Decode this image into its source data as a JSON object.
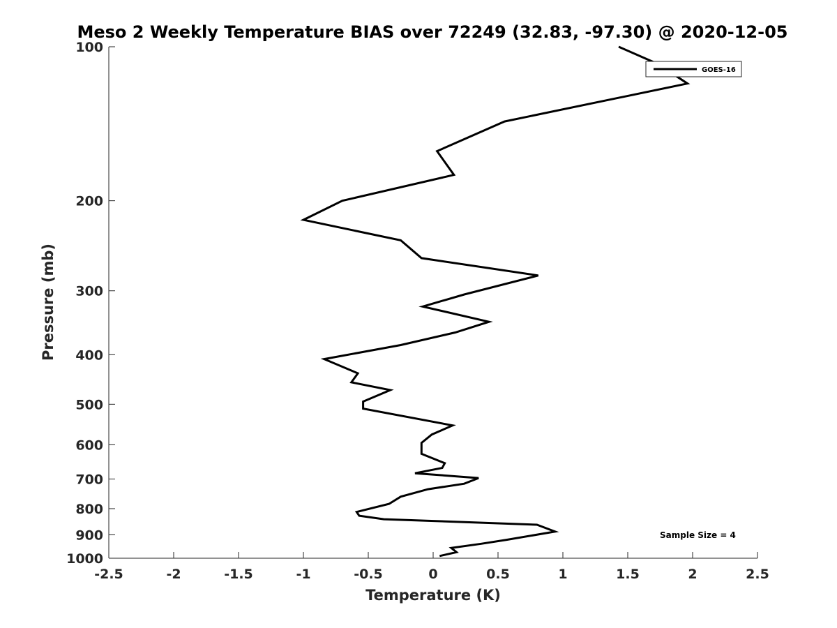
{
  "chart_data": {
    "type": "line",
    "title": "Meso 2 Weekly Temperature BIAS over 72249 (32.83, -97.30) @ 2020-12-05",
    "xlabel": "Temperature (K)",
    "ylabel": "Pressure (mb)",
    "xlim": [
      -2.5,
      2.5
    ],
    "ylim": [
      100,
      1000
    ],
    "yscale": "log",
    "y_reversed": true,
    "x_ticks": [
      "-2.5",
      "-2",
      "-1.5",
      "-1",
      "-0.5",
      "0",
      "0.5",
      "1",
      "1.5",
      "2",
      "2.5"
    ],
    "y_ticks": [
      "100",
      "200",
      "300",
      "400",
      "500",
      "600",
      "700",
      "800",
      "900",
      "1000"
    ],
    "grid": false,
    "legend_position": "top-right",
    "annotation": "Sample Size = 4",
    "series": [
      {
        "name": "GOES-16",
        "color": "#000000",
        "points": [
          {
            "x": 0.05,
            "p": 990
          },
          {
            "x": 0.18,
            "p": 973
          },
          {
            "x": 0.14,
            "p": 955
          },
          {
            "x": 0.37,
            "p": 937
          },
          {
            "x": 0.57,
            "p": 920
          },
          {
            "x": 0.94,
            "p": 887
          },
          {
            "x": 0.8,
            "p": 860
          },
          {
            "x": -0.38,
            "p": 839
          },
          {
            "x": -0.57,
            "p": 826
          },
          {
            "x": -0.59,
            "p": 812
          },
          {
            "x": -0.34,
            "p": 783
          },
          {
            "x": -0.25,
            "p": 758
          },
          {
            "x": -0.04,
            "p": 733
          },
          {
            "x": 0.24,
            "p": 715
          },
          {
            "x": 0.35,
            "p": 697
          },
          {
            "x": -0.14,
            "p": 682
          },
          {
            "x": 0.07,
            "p": 666
          },
          {
            "x": 0.09,
            "p": 652
          },
          {
            "x": -0.09,
            "p": 625
          },
          {
            "x": -0.09,
            "p": 609
          },
          {
            "x": -0.09,
            "p": 595
          },
          {
            "x": -0.01,
            "p": 573
          },
          {
            "x": 0.15,
            "p": 550
          },
          {
            "x": -0.54,
            "p": 510
          },
          {
            "x": -0.54,
            "p": 494
          },
          {
            "x": -0.33,
            "p": 469
          },
          {
            "x": -0.63,
            "p": 453
          },
          {
            "x": -0.58,
            "p": 435
          },
          {
            "x": -0.84,
            "p": 408
          },
          {
            "x": -0.25,
            "p": 383
          },
          {
            "x": 0.17,
            "p": 362
          },
          {
            "x": 0.43,
            "p": 345
          },
          {
            "x": -0.08,
            "p": 322
          },
          {
            "x": 0.24,
            "p": 305
          },
          {
            "x": 0.81,
            "p": 280
          },
          {
            "x": -0.09,
            "p": 259
          },
          {
            "x": -0.25,
            "p": 239
          },
          {
            "x": -1.0,
            "p": 218
          },
          {
            "x": -0.7,
            "p": 200
          },
          {
            "x": 0.16,
            "p": 178
          },
          {
            "x": 0.03,
            "p": 160
          },
          {
            "x": 0.55,
            "p": 140
          },
          {
            "x": 1.96,
            "p": 118
          },
          {
            "x": 1.73,
            "p": 108
          },
          {
            "x": 1.43,
            "p": 100
          }
        ]
      }
    ]
  }
}
